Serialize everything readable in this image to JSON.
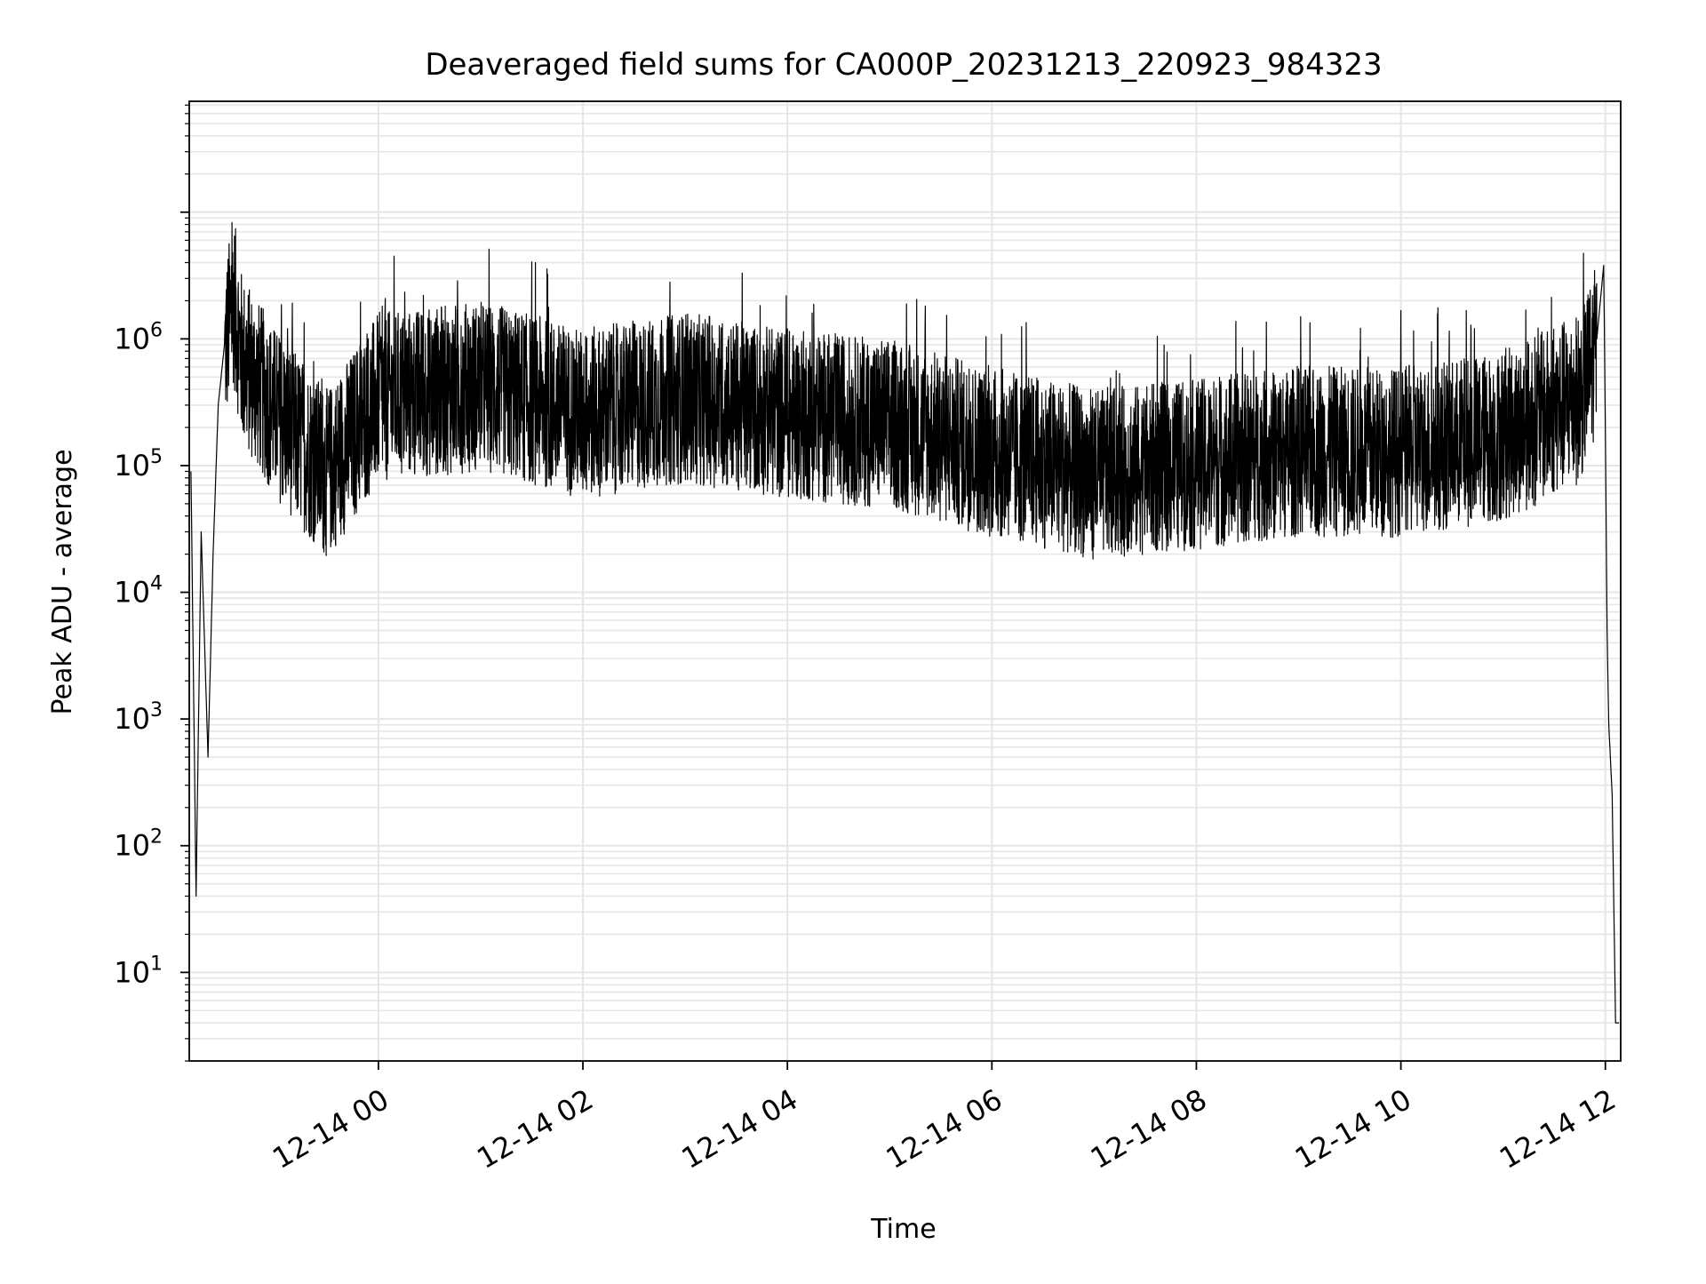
{
  "chart_data": {
    "type": "line",
    "title": "Deaveraged field sums for CA000P_20231213_220923_984323",
    "xlabel": "Time",
    "ylabel": "Peak ADU - average",
    "yscale": "log",
    "ylim": [
      2,
      75000000
    ],
    "xlim": [
      "2023-12-13 22:09",
      "2023-12-14 12:09"
    ],
    "x_ticks": [
      "12-14 00",
      "12-14 02",
      "12-14 04",
      "12-14 06",
      "12-14 08",
      "12-14 10",
      "12-14 12"
    ],
    "y_ticks": [
      {
        "base": "10",
        "exp": "1"
      },
      {
        "base": "10",
        "exp": "2"
      },
      {
        "base": "10",
        "exp": "3"
      },
      {
        "base": "10",
        "exp": "4"
      },
      {
        "base": "10",
        "exp": "5"
      },
      {
        "base": "10",
        "exp": "6"
      }
    ],
    "grid": true,
    "line_color": "#000000",
    "grid_color": "#e6e6e6",
    "series": [
      {
        "x": [
          "2023-12-13 22:10",
          "2023-12-13 22:13",
          "2023-12-13 22:16",
          "2023-12-13 22:20",
          "2023-12-13 22:23",
          "2023-12-13 22:26",
          "2023-12-13 22:30",
          "2023-12-13 22:35",
          "2023-12-13 22:40",
          "2023-12-13 23:00",
          "2023-12-13 23:30",
          "2023-12-14 00:00",
          "2023-12-14 01:00",
          "2023-12-14 02:00",
          "2023-12-14 03:00",
          "2023-12-14 04:00",
          "2023-12-14 05:00",
          "2023-12-14 06:00",
          "2023-12-14 07:00",
          "2023-12-14 08:00",
          "2023-12-14 09:00",
          "2023-12-14 10:00",
          "2023-12-14 11:00",
          "2023-12-14 11:45",
          "2023-12-14 11:55",
          "2023-12-14 11:59",
          "2023-12-14 12:00",
          "2023-12-14 12:01",
          "2023-12-14 12:02",
          "2023-12-14 12:04",
          "2023-12-14 12:06",
          "2023-12-14 12:08"
        ],
        "y": [
          90000,
          40,
          30000,
          500,
          20000,
          300000,
          1000000,
          2400000,
          800000,
          300000,
          100000,
          400000,
          500000,
          300000,
          400000,
          300000,
          250000,
          150000,
          100000,
          120000,
          150000,
          150000,
          200000,
          400000,
          1000000,
          3800000,
          200000,
          5000,
          900,
          250,
          4,
          4
        ]
      }
    ]
  }
}
